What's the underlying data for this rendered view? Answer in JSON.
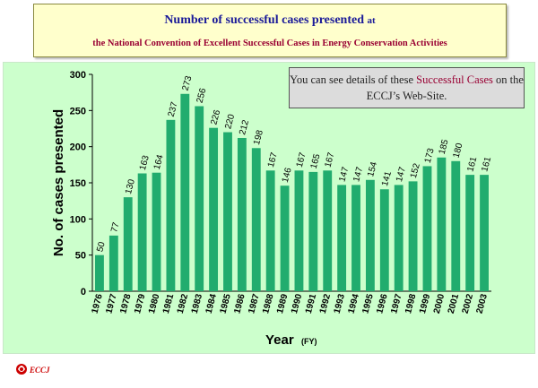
{
  "title": {
    "line1_main": "Number of successful cases presented",
    "line1_suffix": "at",
    "line2": "the National Convention of Excellent Successful Cases in Energy Conservation Activities"
  },
  "note": {
    "text_before": "You can see details of these",
    "text_highlight": "Successful Cases",
    "text_after": "on the ECCJ’s Web-Site."
  },
  "footer": {
    "logo_text": "ECCJ"
  },
  "colors": {
    "bar": "#21ac6e",
    "title_line1": "#1a1a99",
    "title_line2": "#990033",
    "plot_bg": "#ccffcc"
  },
  "chart_data": {
    "type": "bar",
    "categories": [
      "1976",
      "1977",
      "1978",
      "1979",
      "1980",
      "1981",
      "1982",
      "1983",
      "1984",
      "1985",
      "1986",
      "1987",
      "1988",
      "1989",
      "1990",
      "1991",
      "1992",
      "1993",
      "1994",
      "1995",
      "1996",
      "1997",
      "1998",
      "1999",
      "2000",
      "2001",
      "2002",
      "2003"
    ],
    "values": [
      50,
      77,
      130,
      163,
      164,
      237,
      273,
      256,
      226,
      220,
      212,
      198,
      167,
      146,
      167,
      165,
      167,
      147,
      147,
      154,
      141,
      147,
      152,
      173,
      185,
      180,
      161,
      161
    ],
    "xlabel": "Year",
    "xlabel_unit": "(FY)",
    "ylabel": "No. of cases presented",
    "ylim": [
      0,
      300
    ],
    "yticks": [
      0,
      50,
      100,
      150,
      200,
      250,
      300
    ],
    "grid": false,
    "legend": "none"
  }
}
